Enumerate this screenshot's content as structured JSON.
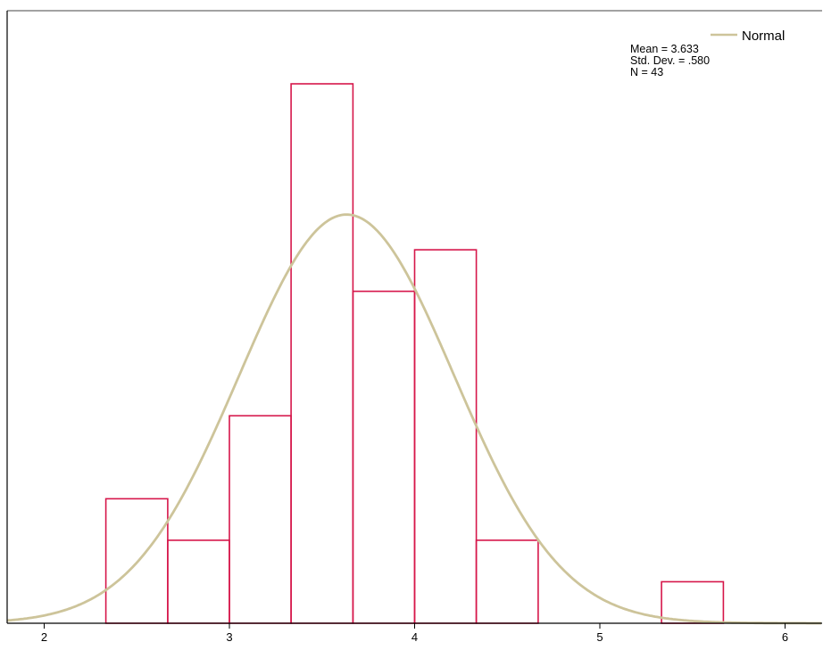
{
  "chart_data": {
    "type": "bar",
    "subtype": "histogram",
    "title": "",
    "xlabel": "",
    "ylabel": "",
    "xlim": [
      1.8,
      6.2
    ],
    "ylim": [
      0,
      13
    ],
    "x_ticks": [
      2,
      3,
      4,
      5,
      6
    ],
    "bins": [
      {
        "x0": 2.333,
        "x1": 2.667,
        "count": 3
      },
      {
        "x0": 2.667,
        "x1": 3.0,
        "count": 2
      },
      {
        "x0": 3.0,
        "x1": 3.333,
        "count": 5
      },
      {
        "x0": 3.333,
        "x1": 3.667,
        "count": 13
      },
      {
        "x0": 3.667,
        "x1": 4.0,
        "count": 8
      },
      {
        "x0": 4.0,
        "x1": 4.333,
        "count": 9
      },
      {
        "x0": 4.333,
        "x1": 4.667,
        "count": 2
      },
      {
        "x0": 5.333,
        "x1": 5.667,
        "count": 1
      }
    ],
    "normal_curve": {
      "mean": 3.633,
      "sd": 0.58,
      "n": 43,
      "bin_width": 0.333
    },
    "legend": {
      "entry": "Normal",
      "stats": [
        "Mean = 3.633",
        "Std. Dev. = .580",
        "N = 43"
      ],
      "placement": "top-right"
    },
    "colors": {
      "bar_stroke": "#d6164a",
      "curve": "#cdc49a",
      "axis": "#000000"
    },
    "grid": false
  }
}
